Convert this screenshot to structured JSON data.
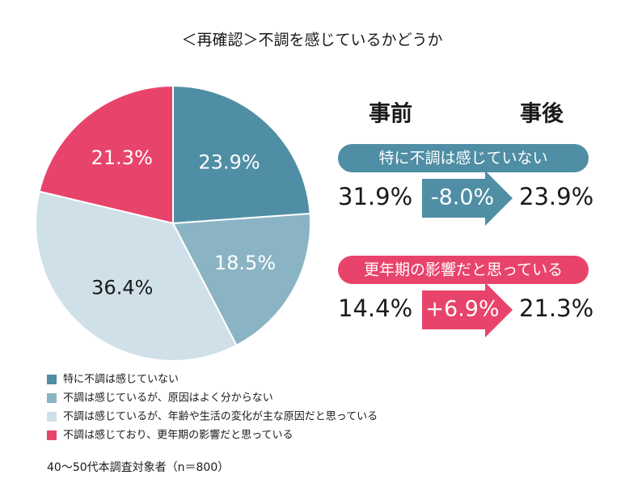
{
  "chart_data": {
    "type": "pie",
    "title": "＜再確認＞不調を感じているかどうか",
    "categories": [
      "特に不調は感じていない",
      "不調は感じているが、原因はよく分からない",
      "不調は感じているが、年齢や生活の変化が主な原因だと思っている",
      "不調は感じており、更年期の影響だと思っている"
    ],
    "values": [
      23.9,
      18.5,
      36.4,
      21.3
    ],
    "value_labels": [
      "23.9%",
      "18.5%",
      "36.4%",
      "21.3%"
    ],
    "colors": [
      "#4f8ea5",
      "#8ab4c4",
      "#cfe0e8",
      "#e8446b"
    ],
    "label_colors": [
      "#ffffff",
      "#ffffff",
      "#1a1a1a",
      "#ffffff"
    ],
    "note": "40～50代本調査対象者（n＝800）",
    "comparison": {
      "headers": [
        "事前",
        "事後"
      ],
      "rows": [
        {
          "label": "特に不調は感じていない",
          "color": "#4f8ea5",
          "before": 31.9,
          "before_label": "31.9%",
          "change": -8.0,
          "change_label": "-8.0%",
          "after": 23.9,
          "after_label": "23.9%"
        },
        {
          "label": "更年期の影響だと思っている",
          "color": "#e8446b",
          "before": 14.4,
          "before_label": "14.4%",
          "change": 6.9,
          "change_label": "+6.9%",
          "after": 21.3,
          "after_label": "21.3%"
        }
      ]
    }
  }
}
